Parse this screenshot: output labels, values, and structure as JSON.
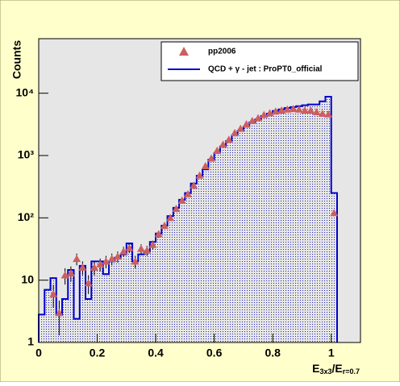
{
  "chart_data": {
    "type": "histogram",
    "ylabel": "Counts",
    "xlabel": [
      "E",
      "3x3",
      "/E",
      "r=0.7"
    ],
    "xlim": [
      0,
      1.1
    ],
    "xticks": [
      0,
      0.2,
      0.4,
      0.6,
      0.8,
      1
    ],
    "ylim": [
      1,
      75000
    ],
    "log_y": true,
    "yticks": [
      1,
      10,
      {
        "value": 100,
        "label": "10²"
      },
      {
        "value": 1000,
        "label": "10³"
      },
      {
        "value": 10000,
        "label": "10⁴"
      }
    ],
    "legend": "top-right",
    "bins": [
      0,
      0.02,
      0.04,
      0.06,
      0.08,
      0.1,
      0.12,
      0.14,
      0.16,
      0.18,
      0.2,
      0.22,
      0.24,
      0.26,
      0.28,
      0.3,
      0.32,
      0.34,
      0.36,
      0.38,
      0.4,
      0.42,
      0.44,
      0.46,
      0.48,
      0.5,
      0.52,
      0.54,
      0.56,
      0.58,
      0.6,
      0.62,
      0.64,
      0.66,
      0.68,
      0.7,
      0.72,
      0.74,
      0.76,
      0.78,
      0.8,
      0.82,
      0.84,
      0.86,
      0.88,
      0.9,
      0.92,
      0.94,
      0.96,
      0.98,
      1.0,
      1.02
    ],
    "series": [
      {
        "name": "QCD + γ - jet : ProPT0_official",
        "type": "histogram",
        "color": "#0000cc",
        "values": [
          2.8,
          7,
          10.8,
          2.8,
          5,
          14.6,
          2.4,
          17,
          5,
          20,
          20,
          12.5,
          20,
          23,
          26,
          39,
          20,
          26,
          29,
          41,
          56,
          75,
          107,
          145,
          195,
          250,
          355,
          475,
          600,
          860,
          1100,
          1400,
          1700,
          2100,
          2500,
          2900,
          3400,
          3800,
          4300,
          4700,
          5200,
          5500,
          5800,
          6000,
          6200,
          6400,
          6600,
          6600,
          7400,
          8800,
          250
        ]
      },
      {
        "name": "pp2006",
        "type": "scatter",
        "color": "#cc5f5f",
        "x": [
          0.05,
          0.07,
          0.09,
          0.11,
          0.13,
          0.15,
          0.17,
          0.19,
          0.21,
          0.23,
          0.25,
          0.27,
          0.29,
          0.31,
          0.33,
          0.35,
          0.37,
          0.39,
          0.41,
          0.43,
          0.45,
          0.47,
          0.49,
          0.51,
          0.53,
          0.55,
          0.57,
          0.59,
          0.61,
          0.63,
          0.65,
          0.67,
          0.69,
          0.71,
          0.73,
          0.75,
          0.77,
          0.79,
          0.81,
          0.83,
          0.85,
          0.87,
          0.89,
          0.91,
          0.93,
          0.95,
          0.97,
          0.99,
          1.01
        ],
        "values": [
          6,
          3,
          12,
          13,
          22,
          16,
          9,
          16,
          18,
          20,
          22,
          24,
          29,
          33,
          20,
          32,
          30,
          37,
          55,
          75,
          100,
          140,
          190,
          240,
          330,
          480,
          680,
          900,
          1200,
          1500,
          1800,
          2300,
          2700,
          3200,
          3600,
          4000,
          4500,
          4800,
          5100,
          5300,
          5500,
          5600,
          5500,
          5300,
          5300,
          5000,
          4700,
          4600,
          120
        ],
        "errors": [
          2.4,
          1.7,
          3.5,
          3.6,
          4.7,
          4,
          3,
          4,
          4.2,
          4.5,
          4.7,
          4.9,
          5.4,
          5.7,
          4.5,
          5.7,
          5.5,
          6.1,
          7.4,
          8.7,
          10,
          12,
          14,
          15,
          18,
          22,
          26,
          30,
          35,
          39,
          42,
          48,
          52,
          57,
          60,
          63,
          67,
          69,
          71,
          73,
          74,
          75,
          74,
          73,
          73,
          71,
          69,
          68,
          11
        ]
      }
    ]
  }
}
